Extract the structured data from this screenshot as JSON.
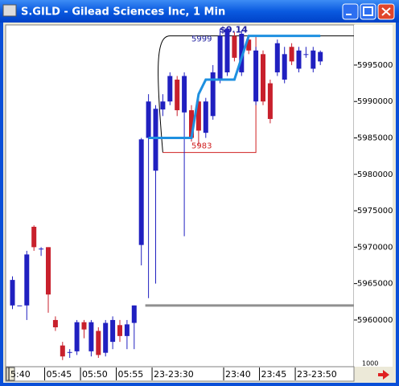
{
  "window": {
    "title": "S.GILD - Gilead Sciences Inc, 1 Min"
  },
  "chart_data": {
    "type": "candlestick",
    "categories": [
      "5:40",
      null,
      null,
      null,
      null,
      "05:45",
      null,
      null,
      null,
      null,
      "05:50",
      null,
      null,
      null,
      null,
      "05:55",
      null,
      null,
      null,
      null,
      "23-23:30",
      null,
      null,
      null,
      null,
      null,
      null,
      null,
      null,
      null,
      "23:40",
      null,
      null,
      null,
      null,
      "23:45",
      null,
      null,
      null,
      null,
      "23-23:50",
      null,
      null,
      null
    ],
    "open": [
      5962000,
      5962000,
      5962000,
      5972800,
      5969800,
      5970000,
      5960000,
      5956500,
      5955500,
      5955700,
      5959700,
      5955700,
      5958500,
      5955500,
      5957000,
      5959300,
      5957800,
      5959600,
      5970300,
      5985000,
      5980500,
      5988900,
      5990000,
      5993000,
      5988500,
      5988800,
      5990000,
      5985700,
      5988000,
      5993000,
      5994000,
      5999000,
      5994000,
      5998500,
      5990000,
      5996500,
      5992500,
      5994000,
      5993000,
      5997500,
      5994500,
      5996500,
      5994500,
      5995500
    ],
    "high": [
      5966000,
      5962000,
      5969500,
      5973000,
      5970000,
      5970000,
      5960500,
      5957000,
      5956000,
      5960000,
      5960000,
      5960000,
      5959000,
      5960000,
      5960500,
      5960000,
      5960000,
      5962000,
      5985000,
      5991000,
      5989500,
      5991000,
      5994000,
      5993500,
      5994000,
      5989500,
      5991000,
      5990500,
      5995000,
      6000000,
      6000200,
      5999500,
      5999800,
      5999000,
      5997500,
      5997000,
      5993000,
      5998500,
      5997500,
      5998000,
      5997500,
      5997500,
      5997500,
      5997000
    ],
    "low": [
      5961500,
      5962000,
      5960000,
      5969500,
      5968800,
      5961000,
      5958500,
      5954500,
      5954800,
      5955200,
      5957500,
      5955000,
      5954800,
      5955000,
      5956000,
      5957000,
      5956000,
      5956000,
      5967500,
      5963000,
      5965000,
      5988000,
      5989500,
      5988000,
      5971500,
      5984500,
      5984000,
      5985000,
      5987500,
      5992500,
      5993500,
      5995500,
      5993500,
      5996500,
      5989500,
      5989500,
      5987000,
      5993500,
      5992500,
      5995000,
      5994000,
      5996000,
      5994000,
      5995000
    ],
    "close": [
      5965500,
      5962000,
      5969000,
      5970000,
      5969800,
      5963500,
      5959000,
      5955000,
      5955600,
      5959700,
      5958700,
      5959700,
      5955200,
      5959600,
      5960000,
      5957800,
      5959400,
      5962000,
      5984800,
      5990000,
      5989000,
      5990000,
      5993500,
      5988800,
      5993500,
      5985000,
      5986000,
      5990000,
      5994000,
      5999000,
      6000000,
      5996000,
      5999300,
      5997000,
      5997000,
      5990000,
      5987600,
      5998000,
      5996500,
      5995500,
      5997000,
      5996500,
      5997000,
      5996800
    ],
    "up_color": "#2020c0",
    "down_color": "#c8202c",
    "overlay": {
      "color": "#1e90e0",
      "values": [
        null,
        null,
        null,
        null,
        null,
        null,
        null,
        null,
        null,
        null,
        null,
        null,
        null,
        null,
        null,
        null,
        null,
        null,
        null,
        5985000,
        5985000,
        5985000,
        5985000,
        5985000,
        5985000,
        5985000,
        5991000,
        5993000,
        5993000,
        5993000,
        5993000,
        5993000,
        5996000,
        5999000,
        5999000,
        5999000,
        5999000,
        5999000,
        5999000,
        5999000,
        5999000,
        5999000,
        5999000,
        5999000
      ]
    },
    "level": {
      "value": 5962000,
      "color": "#909090"
    },
    "range": {
      "high": 5999000,
      "high_label": "5999",
      "low": 5983000,
      "low_label": "5983",
      "change_label": "$0.14"
    },
    "volume_label": "1000",
    "ylim": [
      5953700,
      6000400
    ],
    "yticks": [
      5960000,
      5965000,
      5970000,
      5975000,
      5980000,
      5985000,
      5990000,
      5995000
    ]
  }
}
